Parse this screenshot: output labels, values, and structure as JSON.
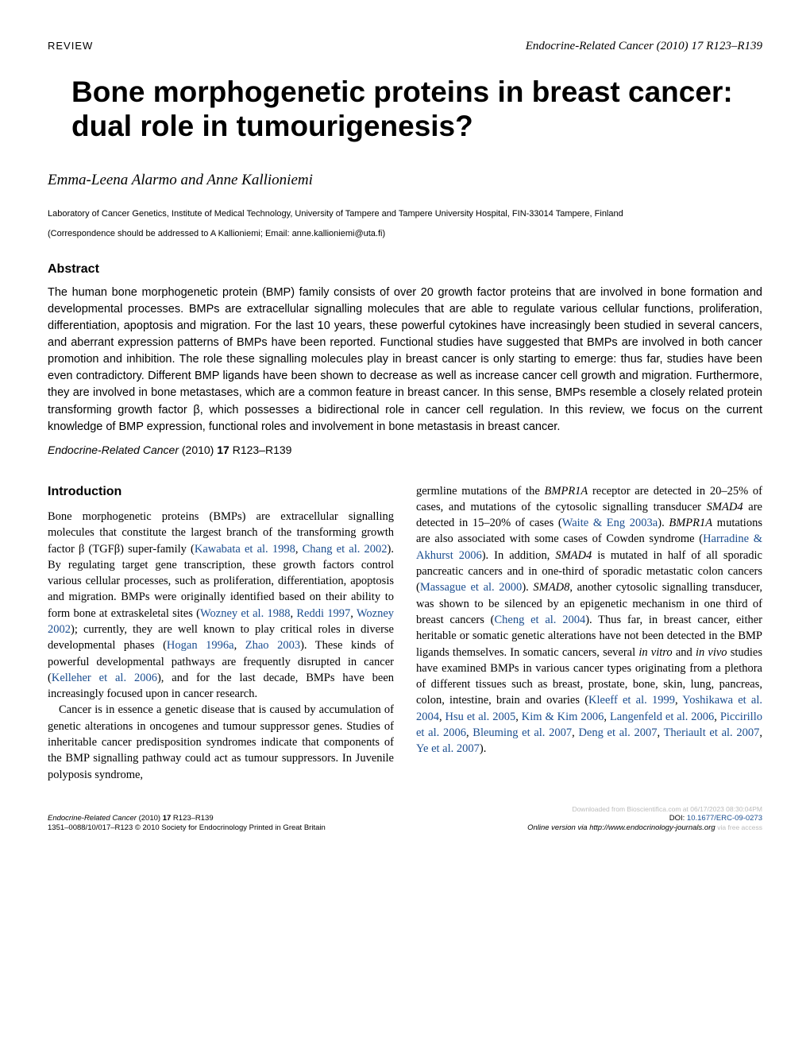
{
  "header": {
    "review_label": "REVIEW",
    "journal_ref": "Endocrine-Related Cancer (2010) 17 R123–R139"
  },
  "title": "Bone morphogenetic proteins in breast cancer: dual role in tumourigenesis?",
  "authors": "Emma-Leena Alarmo and Anne Kallioniemi",
  "affiliation": "Laboratory of Cancer Genetics, Institute of Medical Technology, University of Tampere and Tampere University Hospital, FIN-33014 Tampere, Finland",
  "correspondence": "(Correspondence should be addressed to A Kallioniemi; Email: anne.kallioniemi@uta.fi)",
  "abstract": {
    "heading": "Abstract",
    "text": "The human bone morphogenetic protein (BMP) family consists of over 20 growth factor proteins that are involved in bone formation and developmental processes. BMPs are extracellular signalling molecules that are able to regulate various cellular functions, proliferation, differentiation, apoptosis and migration. For the last 10 years, these powerful cytokines have increasingly been studied in several cancers, and aberrant expression patterns of BMPs have been reported. Functional studies have suggested that BMPs are involved in both cancer promotion and inhibition. The role these signalling molecules play in breast cancer is only starting to emerge: thus far, studies have been even contradictory. Different BMP ligands have been shown to decrease as well as increase cancer cell growth and migration. Furthermore, they are involved in bone metastases, which are a common feature in breast cancer. In this sense, BMPs resemble a closely related protein transforming growth factor β, which possesses a bidirectional role in cancer cell regulation. In this review, we focus on the current knowledge of BMP expression, functional roles and involvement in bone metastasis in breast cancer.",
    "footer_journal": "Endocrine-Related Cancer",
    "footer_year": " (2010) ",
    "footer_vol": "17",
    "footer_pages": " R123–R139"
  },
  "intro": {
    "heading": "Introduction",
    "col1_p1_a": "Bone morphogenetic proteins (BMPs) are extracellular signalling molecules that constitute the largest branch of the transforming growth factor β (TGFβ) super-family (",
    "col1_p1_r1": "Kawabata et al. 1998",
    "col1_p1_b": ", ",
    "col1_p1_r2": "Chang et al. 2002",
    "col1_p1_c": "). By regulating target gene transcription, these growth factors control various cellular processes, such as proliferation, differentiation, apoptosis and migration. BMPs were originally identified based on their ability to form bone at extraskeletal sites (",
    "col1_p1_r3": "Wozney et al. 1988",
    "col1_p1_d": ", ",
    "col1_p1_r4": "Reddi 1997",
    "col1_p1_e": ", ",
    "col1_p1_r5": "Wozney 2002",
    "col1_p1_f": "); currently, they are well known to play critical roles in diverse developmental phases (",
    "col1_p1_r6": "Hogan 1996a",
    "col1_p1_g": ", ",
    "col1_p1_r7": "Zhao 2003",
    "col1_p1_h": "). These kinds of powerful developmental pathways are frequently disrupted in cancer (",
    "col1_p1_r8": "Kelleher et al. 2006",
    "col1_p1_i": "), and for the last decade, BMPs have been increasingly focused upon in cancer research.",
    "col1_p2": "Cancer is in essence a genetic disease that is caused by accumulation of genetic alterations in oncogenes and tumour suppressor genes. Studies of inheritable cancer predisposition syndromes indicate that components of the BMP signalling pathway could act as tumour suppressors. In Juvenile polyposis syndrome,",
    "col2_a": "germline mutations of the ",
    "col2_i1": "BMPR1A",
    "col2_b": " receptor are detected in 20–25% of cases, and mutations of the cytosolic signalling transducer ",
    "col2_i2": "SMAD4",
    "col2_c": " are detected in 15–20% of cases (",
    "col2_r1": "Waite & Eng 2003a",
    "col2_d": "). ",
    "col2_i3": "BMPR1A",
    "col2_e": " mutations are also associated with some cases of Cowden syndrome (",
    "col2_r2": "Harradine & Akhurst 2006",
    "col2_f": "). In addition, ",
    "col2_i4": "SMAD4",
    "col2_g": " is mutated in half of all sporadic pancreatic cancers and in one-third of sporadic metastatic colon cancers (",
    "col2_r3": "Massague et al. 2000",
    "col2_h": "). ",
    "col2_i5": "SMAD8",
    "col2_i": ", another cytosolic signalling transducer, was shown to be silenced by an epigenetic mechanism in one third of breast cancers (",
    "col2_r4": "Cheng et al. 2004",
    "col2_j": "). Thus far, in breast cancer, either heritable or somatic genetic alterations have not been detected in the BMP ligands themselves. In somatic cancers, several ",
    "col2_i6": "in vitro",
    "col2_k": " and ",
    "col2_i7": "in vivo",
    "col2_l": " studies have examined BMPs in various cancer types originating from a plethora of different tissues such as breast, prostate, bone, skin, lung, pancreas, colon, intestine, brain and ovaries (",
    "col2_r5": "Kleeff et al. 1999",
    "col2_m": ", ",
    "col2_r6": "Yoshikawa et al. 2004",
    "col2_n": ", ",
    "col2_r7": "Hsu et al. 2005",
    "col2_o": ", ",
    "col2_r8": "Kim & Kim 2006",
    "col2_p": ", ",
    "col2_r9": "Langenfeld et al. 2006",
    "col2_q": ", ",
    "col2_r10": "Piccirillo et al. 2006",
    "col2_r": ", ",
    "col2_r11": "Bleuming et al. 2007",
    "col2_s": ", ",
    "col2_r12": "Deng et al. 2007",
    "col2_t": ", ",
    "col2_r13": "Theriault et al. 2007",
    "col2_u": ", ",
    "col2_r14": "Ye et al. 2007",
    "col2_v": ")."
  },
  "footer": {
    "left_line1_journal": "Endocrine-Related Cancer",
    "left_line1_year": " (2010) ",
    "left_line1_vol": "17",
    "left_line1_pages": " R123–R139",
    "left_line2": "1351–0088/10/017–R123 © 2010 Society for Endocrinology Printed in Great Britain",
    "right_watermark": "Downloaded from Bioscientifica.com at 06/17/2023 08:30:04PM",
    "right_doi_label": "DOI: ",
    "right_doi": "10.1677/ERC-09-0273",
    "right_online": "Online version via http://www.endocrinology-journals.org",
    "right_access": "via free access"
  }
}
